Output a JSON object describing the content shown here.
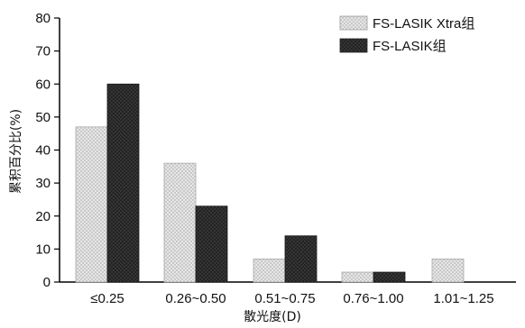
{
  "chart_data": {
    "type": "bar",
    "categories": [
      "≤0.25",
      "0.26~0.50",
      "0.51~0.75",
      "0.76~1.00",
      "1.01~1.25"
    ],
    "series": [
      {
        "name": "FS-LASIK Xtra组",
        "values": [
          47,
          36,
          7,
          3,
          7
        ],
        "pattern": "light-crosshatch",
        "color": "#d0d0d0"
      },
      {
        "name": "FS-LASIK组",
        "values": [
          60,
          23,
          14,
          3,
          0
        ],
        "pattern": "dark-crosshatch",
        "color": "#333333"
      }
    ],
    "xlabel": "散光度(D)",
    "ylabel": "累积百分比(%)",
    "ylim": [
      0,
      80
    ],
    "yticks": [
      0,
      10,
      20,
      30,
      40,
      50,
      60,
      70,
      80
    ],
    "grid": false,
    "legend_position": "top-right"
  }
}
